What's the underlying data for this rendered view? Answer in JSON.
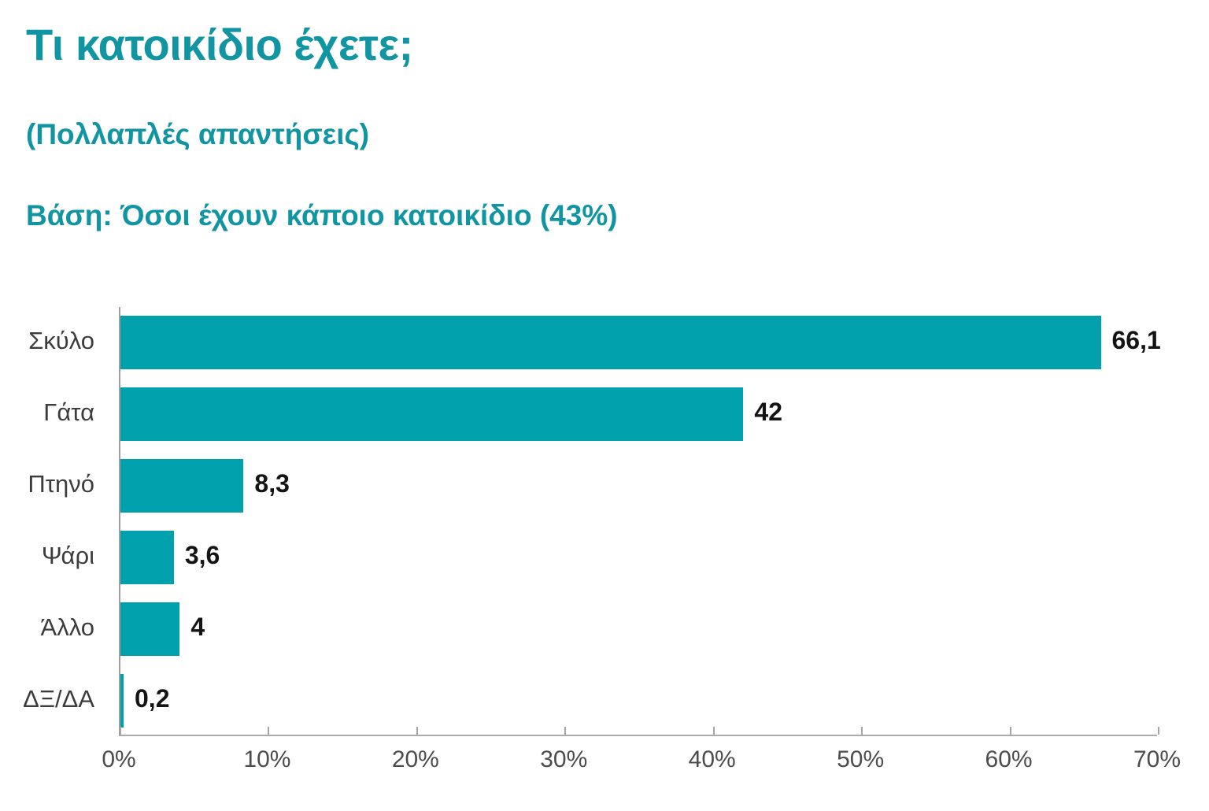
{
  "header": {
    "title": "Τι κατοικίδιο έχετε;",
    "subtitle": "(Πολλαπλές απαντήσεις)",
    "base_note": "Βάση: Όσοι έχουν κάποιο κατοικίδιο (43%)"
  },
  "colors": {
    "accent_text": "#1295A2",
    "bar": "#00A1AD",
    "category_label": "#3C3C3C",
    "value_label": "#141414",
    "axis_line": "#ABABAB",
    "tick_mark": "#A5A5A5",
    "tick_label": "#4C4C4C",
    "background": "#FFFFFF"
  },
  "chart_data": {
    "type": "bar",
    "orientation": "horizontal",
    "title": "Τι κατοικίδιο έχετε;",
    "subtitle": "(Πολλαπλές απαντήσεις)",
    "base_label": "Βάση: Όσοι έχουν κάποιο κατοικίδιο (43%)",
    "categories": [
      "Σκύλο",
      "Γάτα",
      "Πτηνό",
      "Ψάρι",
      "Άλλο",
      "ΔΞ/ΔΑ"
    ],
    "values": [
      66.1,
      42,
      8.3,
      3.6,
      4,
      0.2
    ],
    "value_labels": [
      "66,1",
      "42",
      "8,3",
      "3,6",
      "4",
      "0,2"
    ],
    "xlabel": "",
    "ylabel": "",
    "xlim": [
      0,
      70
    ],
    "x_tick_values": [
      0,
      10,
      20,
      30,
      40,
      50,
      60,
      70
    ],
    "x_tick_labels": [
      "0%",
      "10%",
      "20%",
      "30%",
      "40%",
      "50%",
      "60%",
      "70%"
    ],
    "grid": false,
    "legend": "none",
    "decimal_separator": ","
  }
}
